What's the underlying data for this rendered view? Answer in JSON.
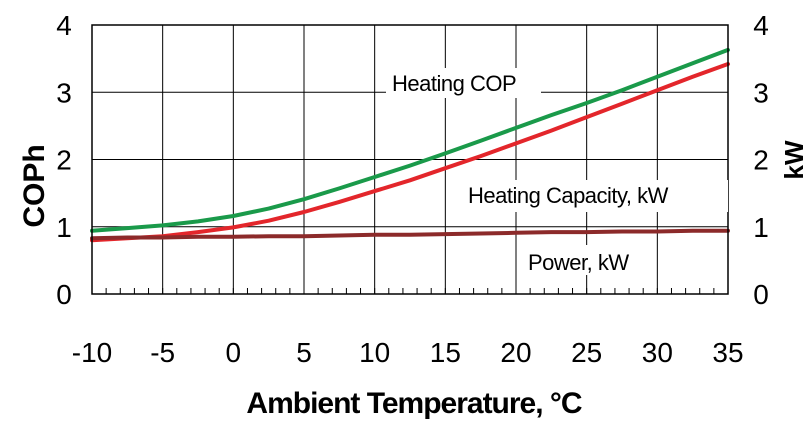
{
  "chart_data": {
    "type": "line",
    "title": "",
    "xlabel": "Ambient Temperature, °C",
    "ylabel": "COPh",
    "y2label": "kW",
    "xlim": [
      -10,
      35
    ],
    "ylim": [
      0,
      4
    ],
    "y2lim": [
      0,
      4
    ],
    "grid": true,
    "x_ticks": [
      -10,
      -5,
      0,
      5,
      10,
      15,
      20,
      25,
      30,
      35
    ],
    "y_ticks": [
      0,
      1,
      2,
      3,
      4
    ],
    "y2_ticks": [
      0,
      1,
      2,
      3,
      4
    ],
    "x": [
      -10,
      -7.5,
      -5,
      -2.5,
      0,
      2.5,
      5,
      7.5,
      10,
      12.5,
      15,
      17.5,
      20,
      22.5,
      25,
      27.5,
      30,
      32.5,
      35
    ],
    "series": [
      {
        "name": "Heating COP",
        "axis": "left",
        "color": "#1a9a4a",
        "values": [
          0.94,
          0.98,
          1.02,
          1.08,
          1.16,
          1.27,
          1.41,
          1.57,
          1.74,
          1.91,
          2.09,
          2.28,
          2.47,
          2.66,
          2.84,
          3.03,
          3.23,
          3.43,
          3.63
        ]
      },
      {
        "name": "Heating Capacity, kW",
        "axis": "right",
        "color": "#e3262b",
        "values": [
          0.8,
          0.83,
          0.86,
          0.92,
          0.99,
          1.09,
          1.22,
          1.37,
          1.53,
          1.69,
          1.87,
          2.05,
          2.24,
          2.43,
          2.63,
          2.83,
          3.03,
          3.23,
          3.42
        ]
      },
      {
        "name": "Power, kW",
        "axis": "right",
        "color": "#8c2a2a",
        "values": [
          0.83,
          0.84,
          0.84,
          0.85,
          0.85,
          0.86,
          0.86,
          0.87,
          0.88,
          0.88,
          0.89,
          0.9,
          0.91,
          0.92,
          0.92,
          0.93,
          0.93,
          0.94,
          0.94
        ]
      }
    ],
    "annotations": [
      "Heating COP",
      "Heating Capacity, kW",
      "Power, kW"
    ]
  }
}
